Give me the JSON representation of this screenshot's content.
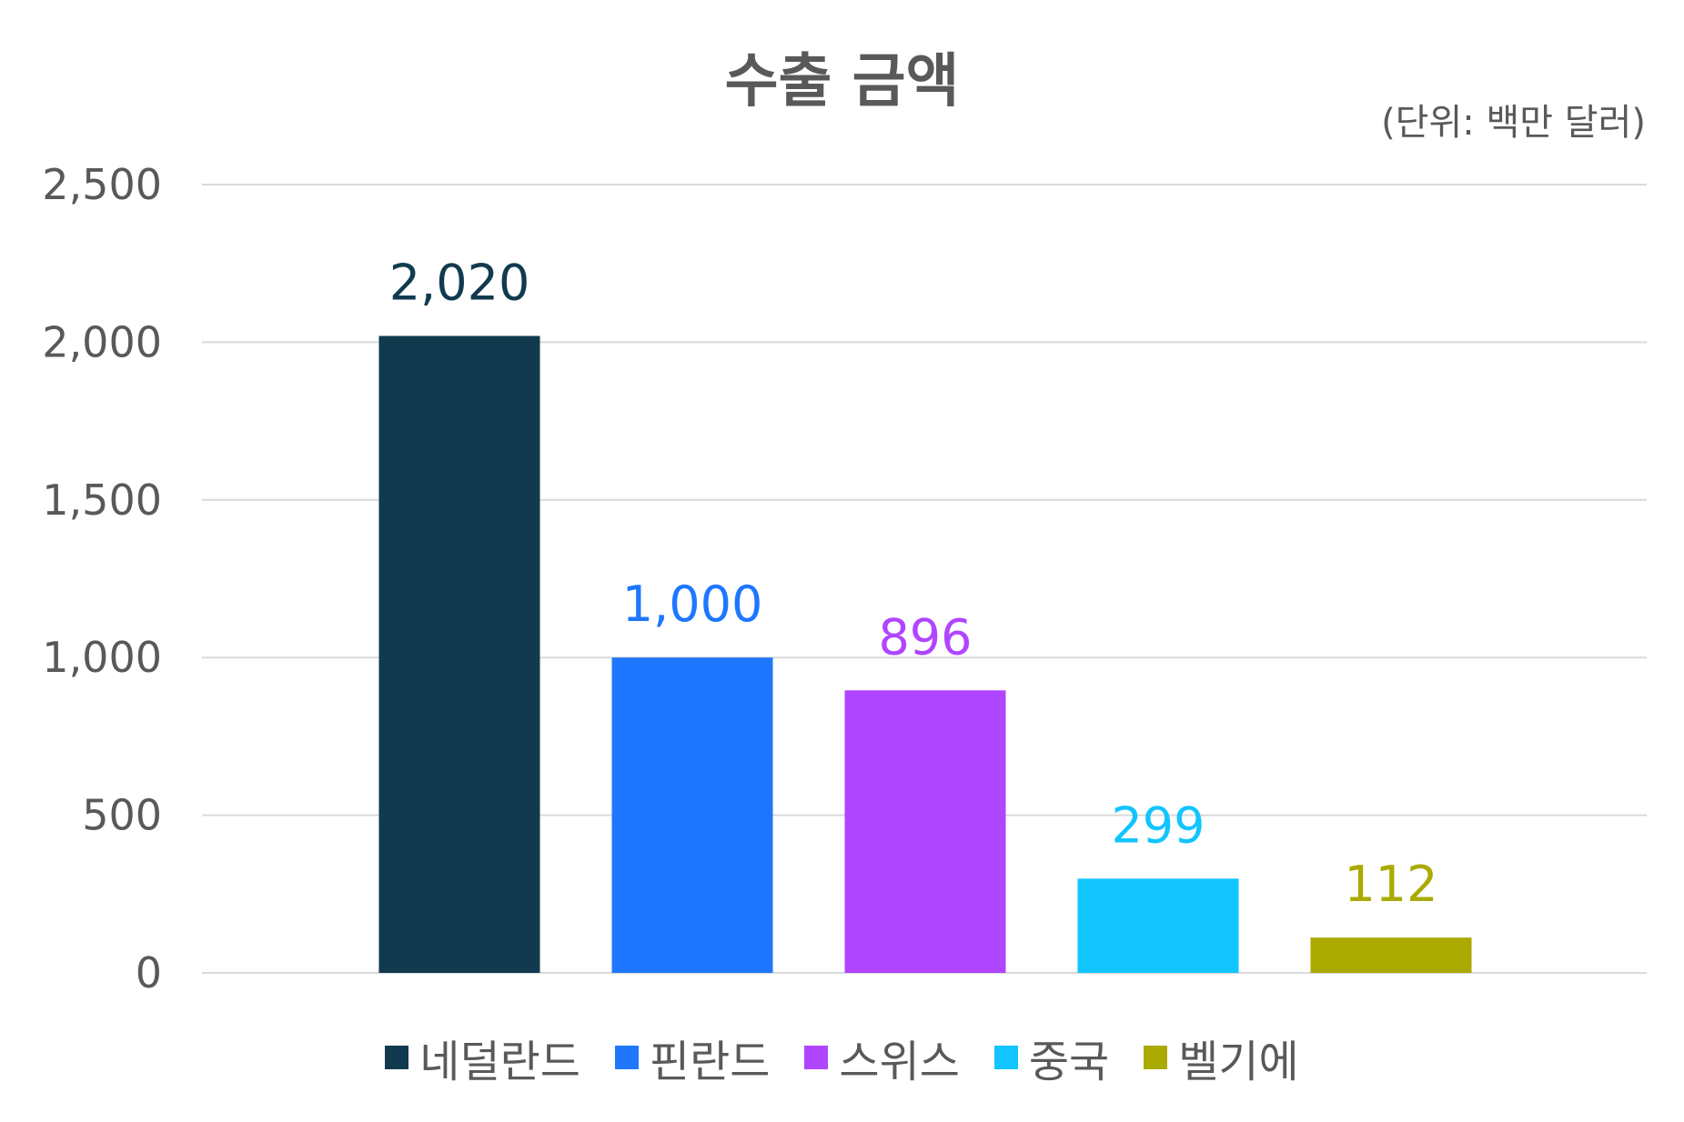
{
  "chart_data": {
    "type": "bar",
    "title": "수출 금액",
    "unit_note": "(단위: 백만 달러)",
    "categories": [
      "네덜란드",
      "핀란드",
      "스위스",
      "중국",
      "벨기에"
    ],
    "values": [
      2020,
      1000,
      896,
      299,
      112
    ],
    "data_labels": [
      "2,020",
      "1,000",
      "896",
      "299",
      "112"
    ],
    "colors": [
      "#113a4f",
      "#1f77ff",
      "#b045ff",
      "#12c4ff",
      "#aaaa00"
    ],
    "ylim": [
      0,
      2500
    ],
    "y_ticks": [
      0,
      500,
      1000,
      1500,
      2000,
      2500
    ],
    "y_tick_labels": [
      "0",
      "500",
      "1,000",
      "1,500",
      "2,000",
      "2,500"
    ],
    "grid": true,
    "legend_position": "bottom",
    "xlabel": "",
    "ylabel": ""
  },
  "colors": {
    "text": "#595959",
    "grid": "#d9d9d9"
  }
}
